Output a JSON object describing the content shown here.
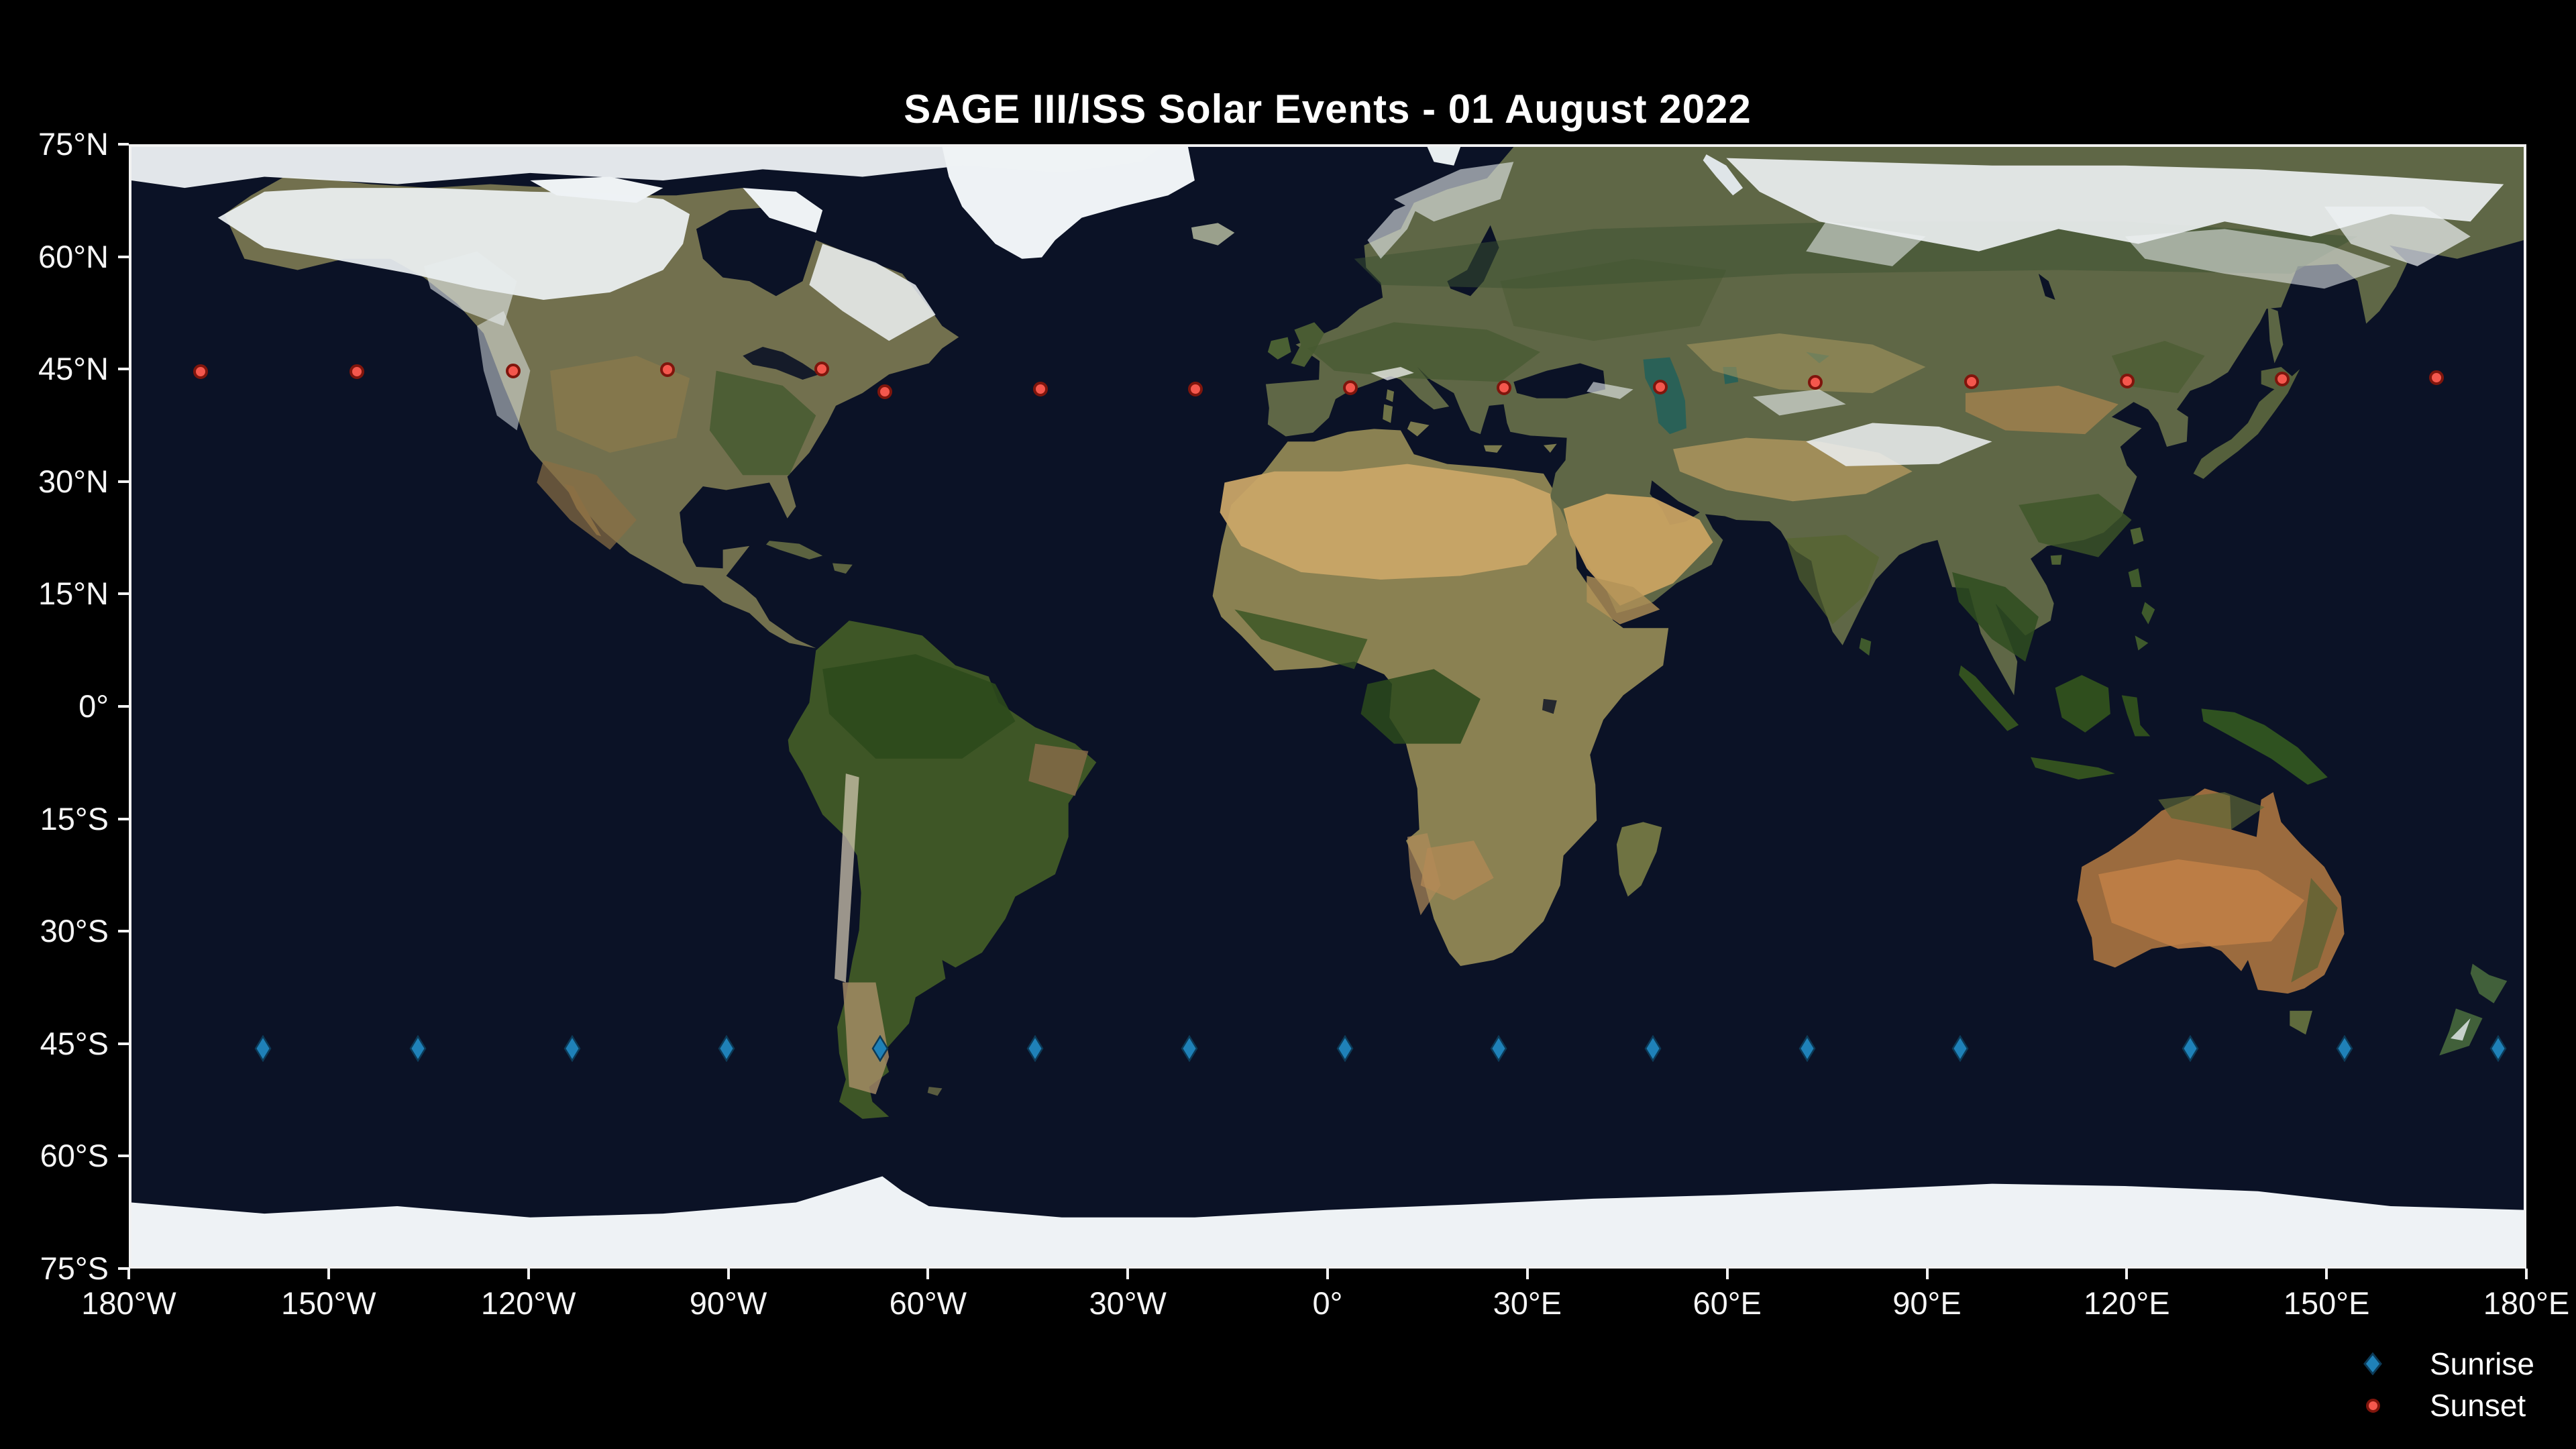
{
  "title": "SAGE III/ISS Solar Events - 01 August 2022",
  "legend": {
    "items": [
      {
        "label": "Sunrise",
        "marker": "thin-diamond",
        "color": "#1f81b8",
        "edge_color": "#0c3a57"
      },
      {
        "label": "Sunset",
        "marker": "circle",
        "color": "#f4574d",
        "edge_color": "#7f150c"
      }
    ]
  },
  "chart_data": {
    "type": "scatter",
    "title": "SAGE III/ISS Solar Events - 01 August 2022",
    "basemap": "satellite world map (equirectangular, dark ocean)",
    "xlabel": "",
    "ylabel": "",
    "xlim": [
      -180,
      180
    ],
    "ylim": [
      -75,
      75
    ],
    "grid": false,
    "legend_position": "below lower-right corner of axes",
    "x_ticks": {
      "values": [
        -180,
        -150,
        -120,
        -90,
        -60,
        -30,
        0,
        30,
        60,
        90,
        120,
        150,
        180
      ],
      "labels": [
        "180°W",
        "150°W",
        "120°W",
        "90°W",
        "60°W",
        "30°W",
        "0°",
        "30°E",
        "60°E",
        "90°E",
        "120°E",
        "150°E",
        "180°E"
      ]
    },
    "y_ticks": {
      "values": [
        75,
        60,
        45,
        30,
        15,
        0,
        -15,
        -30,
        -45,
        -60,
        -75
      ],
      "labels": [
        "75°N",
        "60°N",
        "45°N",
        "30°N",
        "15°N",
        "0°",
        "15°S",
        "30°S",
        "45°S",
        "60°S",
        "75°S"
      ]
    },
    "series": [
      {
        "name": "Sunrise",
        "marker": "thin-diamond",
        "color": "#1f81b8",
        "edge_color": "#0c3a57",
        "points": [
          {
            "lon": -160.2,
            "lat": -45.9
          },
          {
            "lon": -136.9,
            "lat": -45.9
          },
          {
            "lon": -113.7,
            "lat": -45.9
          },
          {
            "lon": -90.5,
            "lat": -45.9
          },
          {
            "lon": -67.3,
            "lat": -45.9
          },
          {
            "lon": -44.0,
            "lat": -45.9
          },
          {
            "lon": -20.8,
            "lat": -45.9
          },
          {
            "lon": 2.6,
            "lat": -45.9
          },
          {
            "lon": 25.7,
            "lat": -45.9
          },
          {
            "lon": 49.0,
            "lat": -45.9
          },
          {
            "lon": 72.2,
            "lat": -45.9
          },
          {
            "lon": 95.2,
            "lat": -45.9
          },
          {
            "lon": 129.8,
            "lat": -45.9
          },
          {
            "lon": 153.0,
            "lat": -45.9
          },
          {
            "lon": 176.2,
            "lat": -45.9
          }
        ]
      },
      {
        "name": "Sunset",
        "marker": "circle",
        "color": "#f4574d",
        "edge_color": "#7f150c",
        "points": [
          {
            "lon": -169.6,
            "lat": 44.9
          },
          {
            "lon": -146.1,
            "lat": 44.9
          },
          {
            "lon": -122.6,
            "lat": 45.0
          },
          {
            "lon": -99.3,
            "lat": 45.1
          },
          {
            "lon": -76.1,
            "lat": 45.2
          },
          {
            "lon": -66.6,
            "lat": 42.2
          },
          {
            "lon": -43.2,
            "lat": 42.5
          },
          {
            "lon": -19.9,
            "lat": 42.5
          },
          {
            "lon": 3.4,
            "lat": 42.7
          },
          {
            "lon": 26.6,
            "lat": 42.7
          },
          {
            "lon": 50.1,
            "lat": 42.8
          },
          {
            "lon": 73.4,
            "lat": 43.4
          },
          {
            "lon": 96.9,
            "lat": 43.5
          },
          {
            "lon": 120.3,
            "lat": 43.6
          },
          {
            "lon": 143.7,
            "lat": 43.9
          },
          {
            "lon": 166.9,
            "lat": 44.1
          }
        ]
      }
    ]
  }
}
